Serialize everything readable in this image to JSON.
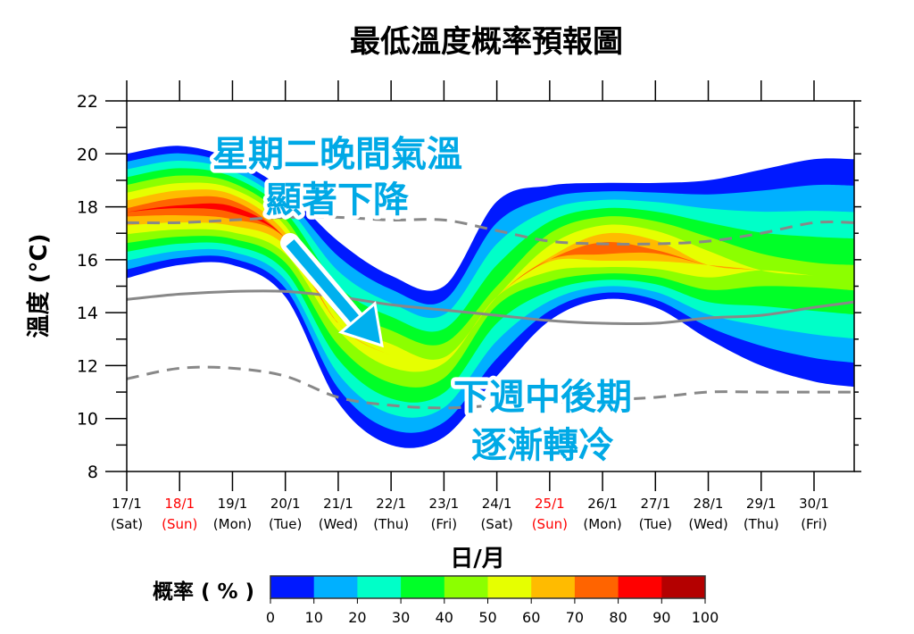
{
  "chart_data": {
    "type": "heatmap",
    "title": "最低溫度概率預報圖",
    "xlabel": "日/月",
    "ylabel": "溫度 (°C)",
    "ylim": [
      8,
      22
    ],
    "yticks": [
      8,
      10,
      12,
      14,
      16,
      18,
      20,
      22
    ],
    "xticks": [
      {
        "date": "17/1",
        "day": "(Sat)",
        "weekend": false
      },
      {
        "date": "18/1",
        "day": "(Sun)",
        "weekend": true
      },
      {
        "date": "19/1",
        "day": "(Mon)",
        "weekend": false
      },
      {
        "date": "20/1",
        "day": "(Tue)",
        "weekend": false
      },
      {
        "date": "21/1",
        "day": "(Wed)",
        "weekend": false
      },
      {
        "date": "22/1",
        "day": "(Thu)",
        "weekend": false
      },
      {
        "date": "23/1",
        "day": "(Fri)",
        "weekend": false
      },
      {
        "date": "24/1",
        "day": "(Sat)",
        "weekend": false
      },
      {
        "date": "25/1",
        "day": "(Sun)",
        "weekend": true
      },
      {
        "date": "26/1",
        "day": "(Mon)",
        "weekend": false
      },
      {
        "date": "27/1",
        "day": "(Tue)",
        "weekend": false
      },
      {
        "date": "28/1",
        "day": "(Wed)",
        "weekend": false
      },
      {
        "date": "29/1",
        "day": "(Thu)",
        "weekend": false
      },
      {
        "date": "30/1",
        "day": "(Fri)",
        "weekend": false
      }
    ],
    "weekend_color": "#ff0000",
    "probability_field": {
      "day": [
        17,
        18,
        19,
        20,
        21,
        22,
        23,
        24,
        25,
        26,
        27,
        28,
        29,
        30,
        30.75
      ],
      "upper_bound": [
        20.0,
        20.3,
        19.8,
        18.6,
        16.7,
        15.4,
        15.0,
        18.2,
        18.8,
        18.9,
        18.9,
        19.0,
        19.4,
        19.8,
        19.8
      ],
      "lower_bound": [
        15.3,
        15.8,
        15.8,
        14.6,
        10.6,
        9.0,
        9.3,
        11.6,
        13.7,
        14.5,
        14.2,
        13.0,
        12.0,
        11.4,
        11.2
      ],
      "mode": [
        17.8,
        18.0,
        17.9,
        16.8,
        13.6,
        12.4,
        12.2,
        14.6,
        16.0,
        16.4,
        16.3,
        15.8,
        15.6,
        15.4,
        15.3
      ],
      "peak_probability": [
        75,
        82,
        85,
        68,
        55,
        58,
        52,
        45,
        62,
        78,
        72,
        60,
        48,
        45,
        45
      ]
    },
    "lines": [
      {
        "style": "solid",
        "color": "#888888",
        "values": [
          14.5,
          14.7,
          14.8,
          14.8,
          14.6,
          14.3,
          14.1,
          13.9,
          13.7,
          13.6,
          13.6,
          13.8,
          13.9,
          14.2,
          14.4
        ]
      },
      {
        "style": "dashed",
        "color": "#888888",
        "values": [
          17.4,
          17.4,
          17.5,
          17.6,
          17.6,
          17.5,
          17.5,
          17.1,
          16.7,
          16.6,
          16.6,
          16.7,
          17.0,
          17.4,
          17.4
        ]
      },
      {
        "style": "dashed",
        "color": "#888888",
        "values": [
          11.5,
          11.9,
          11.9,
          11.6,
          10.8,
          10.5,
          10.4,
          10.5,
          10.6,
          10.7,
          10.8,
          11.0,
          11.0,
          11.0,
          11.0
        ]
      }
    ],
    "colorbar": {
      "label": "概率 ( % )",
      "ticks": [
        0,
        10,
        20,
        30,
        40,
        50,
        60,
        70,
        80,
        90,
        100
      ],
      "colors": [
        "#0019ff",
        "#00b0ff",
        "#00ffc8",
        "#00ff28",
        "#8cff00",
        "#e6ff00",
        "#ffbb00",
        "#ff6400",
        "#ff0000",
        "#b40000"
      ]
    },
    "annotations": [
      {
        "lines": [
          "星期二晚間氣溫",
          "顯著下降"
        ],
        "color": "#00a9e6"
      },
      {
        "lines": [
          "下週中後期",
          "逐漸轉冷"
        ],
        "color": "#00a9e6"
      }
    ]
  }
}
